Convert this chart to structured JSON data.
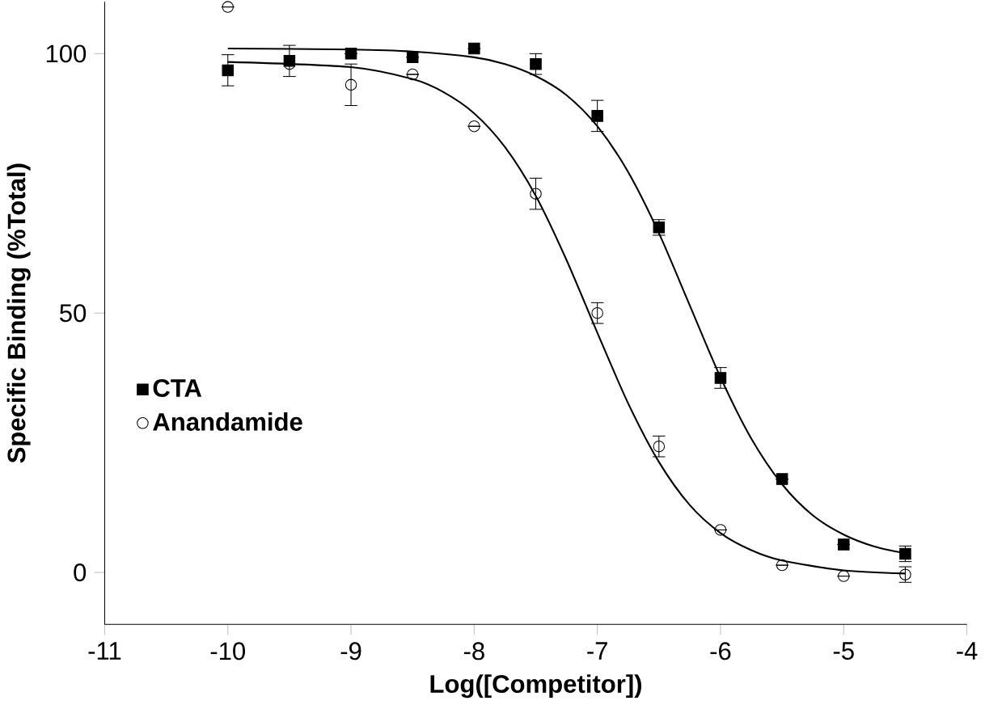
{
  "chart_data": {
    "type": "scatter",
    "xlabel": "Log([Competitor])",
    "ylabel": "Specific Binding (%Total)",
    "xlim": [
      -11,
      -4
    ],
    "ylim": [
      -10,
      110
    ],
    "xticks": [
      -11,
      -10,
      -9,
      -8,
      -7,
      -6,
      -5,
      -4
    ],
    "yticks": [
      0,
      50,
      100
    ],
    "grid": false,
    "legend": "left",
    "series": [
      {
        "name": "CTA",
        "marker": "square",
        "color": "#000000",
        "x": [
          -10,
          -9.5,
          -9,
          -8.5,
          -8,
          -7.5,
          -7,
          -6.5,
          -6,
          -5.5,
          -5,
          -4.5
        ],
        "values": [
          96.8,
          98.6,
          100,
          99.3,
          101,
          98,
          88,
          66.5,
          37.5,
          18,
          5.4,
          3.6
        ],
        "errors": [
          3,
          3,
          null,
          null,
          null,
          2,
          3,
          1.5,
          2,
          null,
          null,
          1.5
        ]
      },
      {
        "name": "Anandamide",
        "marker": "circle",
        "color": "#000000",
        "x": [
          -10,
          -9.5,
          -9,
          -8.5,
          -8,
          -7.5,
          -7,
          -6.5,
          -6,
          -5.5,
          -5,
          -4.5
        ],
        "values": [
          109,
          98,
          94,
          96,
          86,
          73,
          50,
          24.3,
          8.2,
          1.4,
          -0.7,
          -0.4
        ],
        "errors": [
          null,
          null,
          4,
          null,
          null,
          3,
          2,
          2,
          null,
          null,
          null,
          1.5
        ]
      },
      {
        "type": "line",
        "marker": "none",
        "color": "#000000",
        "x": [
          -10,
          -9,
          -8.5,
          -8,
          -7.75,
          -7.5,
          -7.25,
          -7,
          -6.75,
          -6.5,
          -6.25,
          -6,
          -5.75,
          -5.5,
          -5.25,
          -5,
          -4.75,
          -4.5
        ],
        "values": [
          101,
          100.8,
          100.4,
          99.3,
          98,
          95.7,
          92,
          86,
          77.2,
          65.4,
          51.5,
          37.6,
          25.8,
          17,
          11,
          7.3,
          5,
          3.7
        ]
      },
      {
        "type": "line",
        "marker": "none",
        "color": "#000000",
        "x": [
          -10,
          -9,
          -8.5,
          -8.25,
          -8,
          -7.75,
          -7.5,
          -7.25,
          -7,
          -6.75,
          -6.5,
          -6.25,
          -6,
          -5.75,
          -5.5,
          -5,
          -4.5
        ],
        "values": [
          98.4,
          97.4,
          95.1,
          92.6,
          88.5,
          82,
          72.6,
          60.2,
          46.2,
          32.6,
          21.3,
          13,
          7.6,
          4.3,
          2.3,
          0.4,
          -0.2
        ]
      }
    ]
  }
}
